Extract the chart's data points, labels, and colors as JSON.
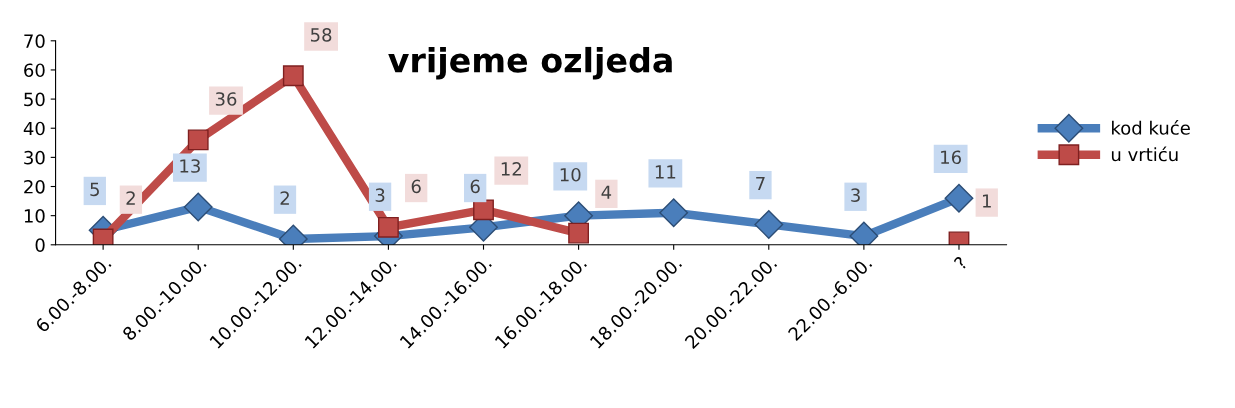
{
  "chart_data": {
    "type": "line",
    "title": "vrijeme ozljeda",
    "categories": [
      "6.00.-8.00.",
      "8.00.-10.00.",
      "10.00.-12.00.",
      "12.00.-14.00.",
      "14.00.-16.00.",
      "16.00.-18.00.",
      "18.00.-20.00.",
      "20.00.-22.00.",
      "22.00.-6.00.",
      "?"
    ],
    "series": [
      {
        "name": "kod kuće",
        "color": "#4a7ebb",
        "marker": "diamond",
        "values": [
          5,
          13,
          2,
          3,
          6,
          10,
          11,
          7,
          3,
          16
        ]
      },
      {
        "name": "u vrtiću",
        "color": "#be4b48",
        "marker": "square",
        "values": [
          2,
          36,
          58,
          6,
          12,
          4,
          null,
          null,
          null,
          1
        ]
      }
    ],
    "ylim": [
      0,
      70
    ],
    "yticks": [
      0,
      10,
      20,
      30,
      40,
      50,
      60,
      70
    ],
    "grid": false,
    "legend": "right",
    "data_labels": true,
    "line_style": "solid"
  }
}
